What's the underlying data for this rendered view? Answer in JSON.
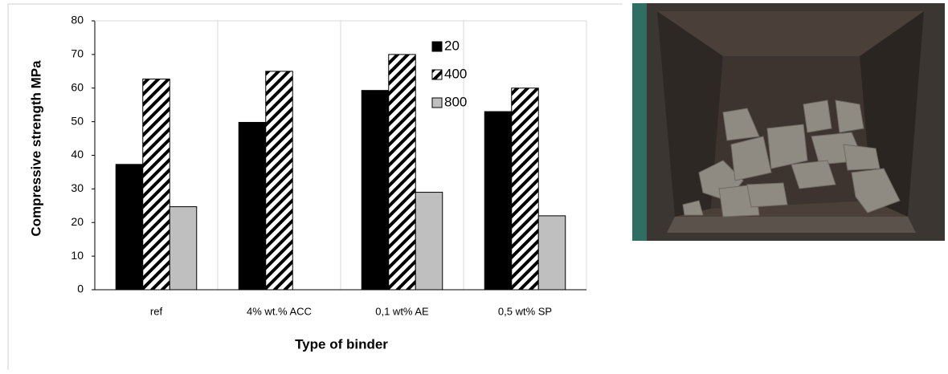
{
  "chart_data": {
    "type": "bar",
    "y_label": "Compressive strength MPa",
    "x_label": "Type of binder",
    "categories": [
      "ref",
      "4% wt.% ACC",
      "0,1 wt% AE",
      "0,5 wt% SP"
    ],
    "series": [
      {
        "name": "20",
        "color": "#000000",
        "values": [
          37.3,
          49.8,
          59.3,
          53
        ]
      },
      {
        "name": "400",
        "color": "#000000",
        "hatch": true,
        "values": [
          62.7,
          65,
          70,
          60
        ]
      },
      {
        "name": "800",
        "color": "#bfbfbf",
        "values": [
          24.7,
          null,
          29,
          22
        ]
      }
    ],
    "ylim": [
      0,
      80
    ],
    "yticks": [
      0,
      10,
      20,
      30,
      40,
      50,
      60,
      70,
      80
    ],
    "grid": true,
    "legend": "upper right"
  }
}
